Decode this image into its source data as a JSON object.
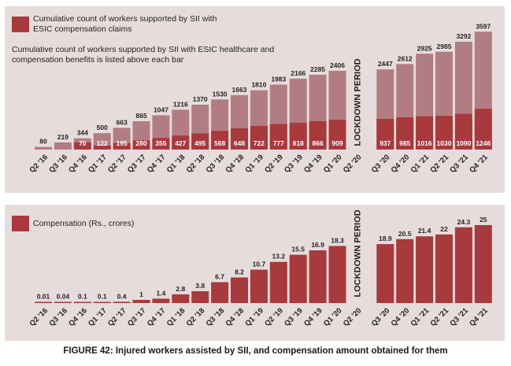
{
  "caption": "FIGURE 42: Injured workers assisted by SII, and compensation amount obtained for them",
  "colors": {
    "dark": "#a8393c",
    "light": "#b27d82",
    "panel": "#e7dcdc",
    "text": "#222222"
  },
  "chart_data": [
    {
      "type": "bar",
      "stacked": "overlay",
      "categories": [
        "Q2 '16",
        "Q3 '16",
        "Q4 '16",
        "Q1 '17",
        "Q2 '17",
        "Q3 '17",
        "Q4 '17",
        "Q1 '18",
        "Q2 '18",
        "Q3 '18",
        "Q4 '18",
        "Q1 '19",
        "Q2 '19",
        "Q3 '19",
        "Q4 '19",
        "Q1 '20",
        "Q2 '20",
        "Q3 '20",
        "Q4 '20",
        "Q1 '21",
        "Q2 '21",
        "Q3 '21",
        "Q4 '21"
      ],
      "series": [
        {
          "name": "Cumulative count of workers supported by SII with ESIC compensation claims",
          "values": [
            null,
            null,
            70,
            122,
            195,
            280,
            355,
            427,
            495,
            568,
            648,
            722,
            777,
            818,
            866,
            909,
            null,
            937,
            985,
            1016,
            1030,
            1090,
            1246
          ]
        },
        {
          "name": "Cumulative count of workers supported by SII with ESIC healthcare and compensation benefits is listed above each bar",
          "values": [
            80,
            219,
            344,
            500,
            663,
            865,
            1047,
            1216,
            1370,
            1530,
            1663,
            1810,
            1983,
            2166,
            2285,
            2406,
            null,
            2447,
            2612,
            2925,
            2985,
            3292,
            3597
          ]
        }
      ],
      "legend": "top-left",
      "annotation": "LOCKDOWN PERIOD",
      "ylim": [
        0,
        3700
      ]
    },
    {
      "type": "bar",
      "categories": [
        "Q2 '16",
        "Q3 '16",
        "Q4 '16",
        "Q1 '17",
        "Q2 '17",
        "Q3 '17",
        "Q4 '17",
        "Q1 '18",
        "Q2 '18",
        "Q3 '18",
        "Q4 '18",
        "Q1 '19",
        "Q2 '19",
        "Q3 '19",
        "Q4 '19",
        "Q1 '20",
        "Q2 '20",
        "Q3 '20",
        "Q4 '20",
        "Q1 '21",
        "Q2 '21",
        "Q3 '21",
        "Q4 '21"
      ],
      "series": [
        {
          "name": "Compensation (Rs., crores)",
          "values": [
            0.01,
            0.04,
            0.1,
            0.1,
            0.4,
            1,
            1.4,
            2.8,
            3.8,
            6.7,
            8.2,
            10.7,
            13.2,
            15.5,
            16.9,
            18.3,
            null,
            18.9,
            20.5,
            21.4,
            22,
            24.3,
            25
          ]
        }
      ],
      "value_labels": [
        "0.01",
        "0.04",
        "0.1",
        "0.1",
        "0.4",
        "1",
        "1.4",
        "2.8",
        "3.8",
        "6.7",
        "8.2",
        "10.7",
        "13.2",
        "15.5",
        "16.9",
        "18.3",
        "",
        "18.9",
        "20.5",
        "21.4",
        "22",
        "24.3",
        "25"
      ],
      "legend": "top-left",
      "annotation": "LOCKDOWN PERIOD",
      "ylim": [
        0,
        25.5
      ]
    }
  ]
}
